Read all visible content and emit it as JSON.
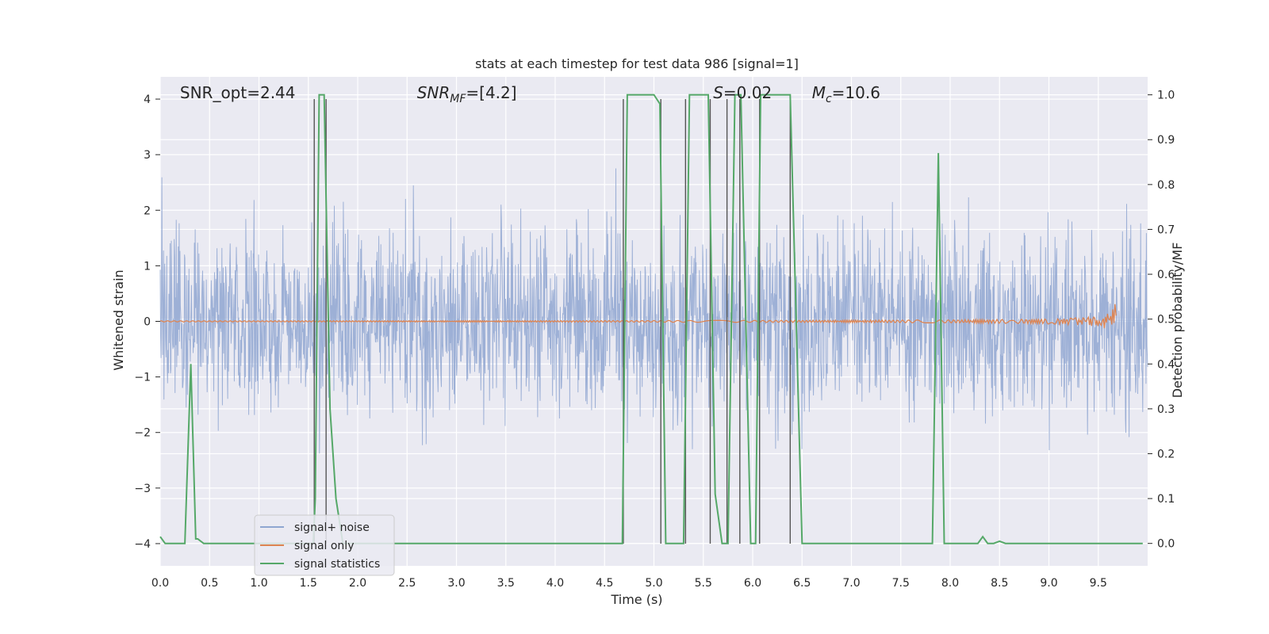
{
  "chart_data": {
    "type": "line",
    "title": "stats at each timestep for test data 986 [signal=1]",
    "xlabel": "Time (s)",
    "ylabel_left": "Whitened strain",
    "ylabel_right": "Detection probability/MF",
    "xlim": [
      0.0,
      10.0
    ],
    "ylim_left": [
      -4.4,
      4.4
    ],
    "ylim_right": [
      -0.05,
      1.04
    ],
    "x_ticks": [
      "0.0",
      "0.5",
      "1.0",
      "1.5",
      "2.0",
      "2.5",
      "3.0",
      "3.5",
      "4.0",
      "4.5",
      "5.0",
      "5.5",
      "6.0",
      "6.5",
      "7.0",
      "7.5",
      "8.0",
      "8.5",
      "9.0",
      "9.5"
    ],
    "x_tick_values": [
      0.0,
      0.5,
      1.0,
      1.5,
      2.0,
      2.5,
      3.0,
      3.5,
      4.0,
      4.5,
      5.0,
      5.5,
      6.0,
      6.5,
      7.0,
      7.5,
      8.0,
      8.5,
      9.0,
      9.5
    ],
    "y_left_ticks": [
      "−4",
      "−3",
      "−2",
      "−1",
      "0",
      "1",
      "2",
      "3",
      "4"
    ],
    "y_left_tick_values": [
      -4,
      -3,
      -2,
      -1,
      0,
      1,
      2,
      3,
      4
    ],
    "y_right_ticks": [
      "0.0",
      "0.1",
      "0.2",
      "0.3",
      "0.4",
      "0.5",
      "0.6",
      "0.7",
      "0.8",
      "0.9",
      "1.0"
    ],
    "y_right_tick_values": [
      0.0,
      0.1,
      0.2,
      0.3,
      0.4,
      0.5,
      0.6,
      0.7,
      0.8,
      0.9,
      1.0
    ],
    "grid": true,
    "annotations": [
      {
        "plain": "SNR_opt=2.44",
        "x": 0.2
      },
      {
        "base": "SNR",
        "sub": "MF",
        "rest": "=[4.2]",
        "x": 2.6
      },
      {
        "base": "S",
        "sub": "",
        "rest": "=0.02",
        "x": 5.6
      },
      {
        "base": "M",
        "sub": "c",
        "rest": "=10.6",
        "x": 6.6
      }
    ],
    "legend": {
      "placement": "lower-left",
      "entries": [
        {
          "label": "signal+ noise",
          "color": "#8fa6d1"
        },
        {
          "label": "signal only",
          "color": "#dd8452"
        },
        {
          "label": "signal statistics",
          "color": "#55a868"
        }
      ]
    },
    "series": [
      {
        "name": "signal+ noise",
        "color": "#8fa6d1",
        "description_stats": {
          "sigma": 0.8,
          "seed": 986
        }
      },
      {
        "name": "signal only",
        "color": "#dd8452",
        "chirp_end_x": 9.68,
        "chirp_peak_amplitude": 0.45
      },
      {
        "name": "signal statistics",
        "color": "#55a868",
        "x": [
          0.0,
          0.05,
          0.25,
          0.31,
          0.36,
          0.38,
          0.44,
          0.5,
          1.55,
          1.57,
          1.61,
          1.66,
          1.72,
          1.78,
          1.85,
          4.68,
          4.73,
          5.0,
          5.06,
          5.12,
          5.3,
          5.36,
          5.55,
          5.62,
          5.69,
          5.75,
          5.82,
          5.88,
          5.98,
          6.03,
          6.08,
          6.14,
          6.38,
          6.5,
          7.82,
          7.88,
          7.94,
          8.28,
          8.33,
          8.38,
          8.44,
          8.5,
          8.56,
          9.95
        ],
        "y": [
          0.015,
          0.0,
          0.0,
          0.4,
          0.01,
          0.01,
          0.0,
          0.0,
          0.0,
          0.1,
          1.0,
          1.0,
          0.3,
          0.1,
          0.0,
          0.0,
          1.0,
          1.0,
          0.98,
          0.0,
          0.0,
          1.0,
          1.0,
          0.11,
          0.0,
          0.0,
          1.0,
          1.0,
          0.0,
          0.0,
          1.0,
          1.0,
          1.0,
          0.0,
          0.0,
          0.87,
          0.0,
          0.0,
          0.015,
          0.0,
          0.0,
          0.005,
          0.0,
          0.0
        ]
      }
    ],
    "vertical_lines_x": [
      1.56,
      1.68,
      4.69,
      5.07,
      5.32,
      5.57,
      5.74,
      5.87,
      6.07,
      6.38
    ]
  }
}
